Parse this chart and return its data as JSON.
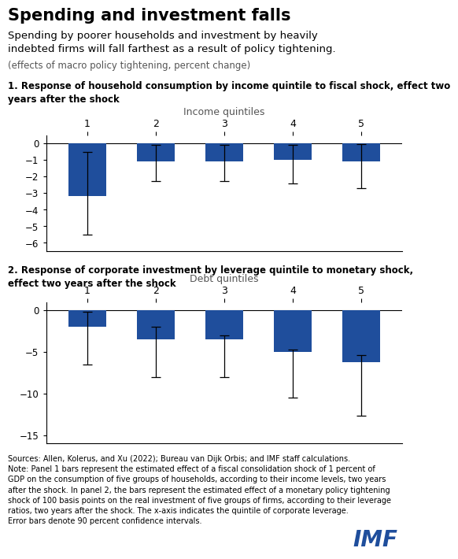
{
  "title_bold": "Spending and investment falls",
  "subtitle": "Spending by poorer households and investment by heavily\nindebted firms will fall farthest as a result of policy tightening.",
  "subtitle_small": "(effects of macro policy tightening, percent change)",
  "panel1_title": "1. Response of household consumption by income quintile to fiscal shock, effect two\nyears after the shock",
  "panel1_xlabel": "Income quintiles",
  "panel1_categories": [
    "1",
    "2",
    "3",
    "4",
    "5"
  ],
  "panel1_values": [
    -3.2,
    -1.1,
    -1.1,
    -1.0,
    -1.1
  ],
  "panel1_yerr_lower": [
    2.3,
    1.2,
    1.2,
    1.4,
    1.6
  ],
  "panel1_yerr_upper": [
    2.7,
    1.0,
    1.0,
    0.9,
    1.05
  ],
  "panel1_ylim": [
    -6.5,
    0.5
  ],
  "panel1_yticks": [
    0,
    -1,
    -2,
    -3,
    -4,
    -5,
    -6
  ],
  "panel2_title": "2. Response of corporate investment by leverage quintile to monetary shock,\neffect two years after the shock",
  "panel2_xlabel": "Debt quintiles",
  "panel2_categories": [
    "1",
    "2",
    "3",
    "4",
    "5"
  ],
  "panel2_values": [
    -2.0,
    -3.5,
    -3.5,
    -5.0,
    -6.2
  ],
  "panel2_yerr_lower": [
    4.5,
    4.5,
    4.5,
    5.5,
    6.5
  ],
  "panel2_yerr_upper": [
    1.8,
    1.5,
    0.5,
    0.3,
    0.8
  ],
  "panel2_ylim": [
    -16,
    1
  ],
  "panel2_yticks": [
    0,
    -5,
    -10,
    -15
  ],
  "bar_color": "#1F4E9C",
  "background_color": "#FFFFFF",
  "source_text": "Sources: Allen, Kolerus, and Xu (2022); Bureau van Dijk Orbis; and IMF staff calculations.\nNote: Panel 1 bars represent the estimated effect of a fiscal consolidation shock of 1 percent of\nGDP on the consumption of five groups of households, according to their income levels, two years\nafter the shock. In panel 2, the bars represent the estimated effect of a monetary policy tightening\nshock of 100 basis points on the real investment of five groups of firms, according to their leverage\nratios, two years after the shock. The x-axis indicates the quintile of corporate leverage.\nError bars denote 90 percent confidence intervals."
}
